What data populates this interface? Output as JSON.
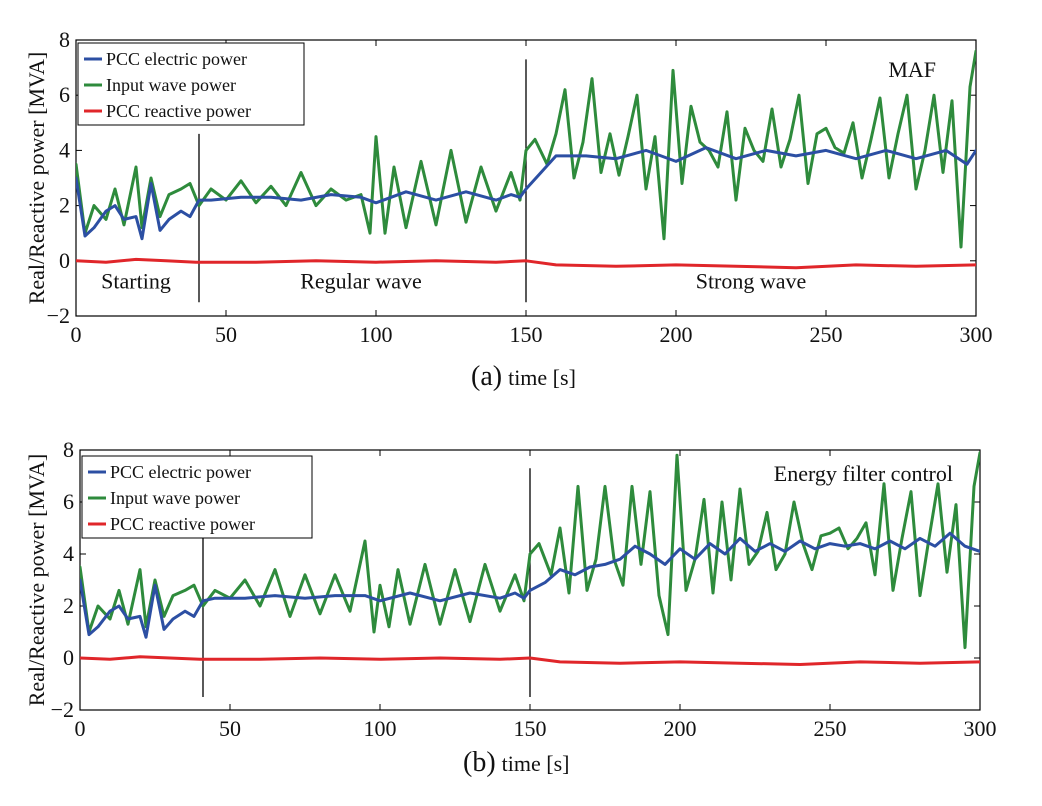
{
  "chart_data": [
    {
      "type": "line",
      "panel_letter": "(a)",
      "xlabel": "time [s]",
      "ylabel": "Real/Reactive power [MVA]",
      "xlim": [
        0,
        300
      ],
      "ylim": [
        -2,
        8
      ],
      "xticks": [
        0,
        50,
        100,
        150,
        200,
        250,
        300
      ],
      "yticks": [
        -2,
        0,
        2,
        4,
        6,
        8
      ],
      "annotation": "MAF",
      "legend_position": "top-left",
      "vlines": [
        41,
        150
      ],
      "regions": [
        {
          "label": "Starting",
          "x": 20
        },
        {
          "label": "Regular wave",
          "x": 95
        },
        {
          "label": "Strong wave",
          "x": 225
        }
      ],
      "series": [
        {
          "name": "PCC electric power",
          "color": "#2c4fa3",
          "x": [
            0,
            3,
            6,
            10,
            13,
            16,
            20,
            22,
            25,
            28,
            31,
            35,
            38,
            41,
            45,
            55,
            65,
            75,
            85,
            95,
            100,
            110,
            120,
            130,
            140,
            145,
            148,
            150,
            155,
            160,
            170,
            180,
            190,
            200,
            210,
            220,
            230,
            240,
            250,
            260,
            270,
            280,
            290,
            297,
            300
          ],
          "y": [
            3.0,
            0.9,
            1.2,
            1.8,
            2.0,
            1.5,
            1.6,
            0.8,
            2.8,
            1.1,
            1.5,
            1.8,
            1.6,
            2.2,
            2.2,
            2.3,
            2.3,
            2.2,
            2.4,
            2.3,
            2.1,
            2.5,
            2.2,
            2.5,
            2.2,
            2.4,
            2.3,
            2.6,
            3.2,
            3.8,
            3.8,
            3.7,
            4.0,
            3.6,
            4.1,
            3.7,
            4.0,
            3.8,
            4.0,
            3.7,
            4.0,
            3.7,
            4.0,
            3.5,
            4.0
          ]
        },
        {
          "name": "Input wave power",
          "color": "#2e8b3c",
          "x": [
            0,
            3,
            6,
            10,
            13,
            16,
            20,
            22,
            25,
            28,
            31,
            35,
            38,
            41,
            45,
            50,
            55,
            60,
            65,
            70,
            75,
            80,
            85,
            90,
            95,
            98,
            100,
            103,
            106,
            110,
            115,
            120,
            125,
            130,
            135,
            140,
            145,
            148,
            150,
            153,
            157,
            160,
            163,
            166,
            169,
            172,
            175,
            178,
            181,
            184,
            187,
            190,
            193,
            196,
            199,
            202,
            205,
            208,
            211,
            214,
            217,
            220,
            223,
            226,
            229,
            232,
            235,
            238,
            241,
            244,
            247,
            250,
            253,
            256,
            259,
            262,
            265,
            268,
            271,
            274,
            277,
            280,
            283,
            286,
            289,
            292,
            295,
            298,
            300
          ],
          "y": [
            3.5,
            1.0,
            2.0,
            1.5,
            2.6,
            1.3,
            3.4,
            1.2,
            3.0,
            1.6,
            2.4,
            2.6,
            2.8,
            2.0,
            2.6,
            2.2,
            2.9,
            2.1,
            2.7,
            2.0,
            3.2,
            2.0,
            2.6,
            2.2,
            2.4,
            1.0,
            4.5,
            1.0,
            3.4,
            1.2,
            3.6,
            1.3,
            4.0,
            1.4,
            3.4,
            1.8,
            3.2,
            2.2,
            4.0,
            4.4,
            3.5,
            4.6,
            6.2,
            3.0,
            4.3,
            6.6,
            3.2,
            4.6,
            3.1,
            4.5,
            6.0,
            2.6,
            4.5,
            0.8,
            6.9,
            2.8,
            5.6,
            4.3,
            4.0,
            3.4,
            5.4,
            2.2,
            4.8,
            4.0,
            3.6,
            5.5,
            3.4,
            4.4,
            6.0,
            2.8,
            4.6,
            4.8,
            4.1,
            3.9,
            5.0,
            3.0,
            4.4,
            5.9,
            3.0,
            4.6,
            6.0,
            2.6,
            4.0,
            6.0,
            3.2,
            5.8,
            0.5,
            6.3,
            7.6
          ]
        },
        {
          "name": "PCC reactive power",
          "color": "#e0262a",
          "x": [
            0,
            10,
            20,
            30,
            40,
            60,
            80,
            100,
            120,
            140,
            150,
            160,
            180,
            200,
            220,
            240,
            260,
            280,
            300
          ],
          "y": [
            0.0,
            -0.05,
            0.05,
            0.0,
            -0.05,
            -0.05,
            0.0,
            -0.05,
            0.0,
            -0.05,
            0.0,
            -0.15,
            -0.2,
            -0.15,
            -0.2,
            -0.25,
            -0.15,
            -0.2,
            -0.15
          ]
        }
      ]
    },
    {
      "type": "line",
      "panel_letter": "(b)",
      "xlabel": "time [s]",
      "ylabel": "Real/Reactive power [MVA]",
      "xlim": [
        0,
        300
      ],
      "ylim": [
        -2,
        8
      ],
      "xticks": [
        0,
        50,
        100,
        150,
        200,
        250,
        300
      ],
      "yticks": [
        -2,
        0,
        2,
        4,
        6,
        8
      ],
      "annotation": "Energy filter control",
      "legend_position": "top-left",
      "vlines": [
        41,
        150
      ],
      "regions": [],
      "series": [
        {
          "name": "PCC electric power",
          "color": "#2c4fa3",
          "x": [
            0,
            3,
            6,
            10,
            13,
            16,
            20,
            22,
            25,
            28,
            31,
            35,
            38,
            41,
            45,
            55,
            65,
            75,
            85,
            95,
            100,
            110,
            120,
            130,
            140,
            145,
            148,
            150,
            155,
            160,
            165,
            170,
            175,
            180,
            185,
            190,
            195,
            200,
            205,
            210,
            215,
            220,
            225,
            230,
            235,
            240,
            245,
            250,
            255,
            260,
            265,
            270,
            275,
            280,
            285,
            290,
            295,
            300
          ],
          "y": [
            3.0,
            0.9,
            1.2,
            1.8,
            2.0,
            1.5,
            1.6,
            0.8,
            2.8,
            1.1,
            1.5,
            1.8,
            1.6,
            2.2,
            2.3,
            2.3,
            2.4,
            2.3,
            2.4,
            2.4,
            2.2,
            2.5,
            2.2,
            2.5,
            2.3,
            2.5,
            2.3,
            2.6,
            2.9,
            3.4,
            3.2,
            3.5,
            3.6,
            3.8,
            4.3,
            4.0,
            3.6,
            4.2,
            3.8,
            4.4,
            4.0,
            4.6,
            4.1,
            4.4,
            4.1,
            4.5,
            4.2,
            4.4,
            4.3,
            4.4,
            4.2,
            4.5,
            4.2,
            4.6,
            4.3,
            4.8,
            4.3,
            4.1
          ]
        },
        {
          "name": "Input wave power",
          "color": "#2e8b3c",
          "x": [
            0,
            3,
            6,
            10,
            13,
            16,
            20,
            22,
            25,
            28,
            31,
            35,
            38,
            41,
            45,
            50,
            55,
            60,
            65,
            70,
            75,
            80,
            85,
            90,
            95,
            98,
            100,
            103,
            106,
            110,
            115,
            120,
            125,
            130,
            135,
            140,
            145,
            148,
            150,
            153,
            157,
            160,
            163,
            166,
            169,
            172,
            175,
            178,
            181,
            184,
            187,
            190,
            193,
            196,
            199,
            202,
            205,
            208,
            211,
            214,
            217,
            220,
            223,
            226,
            229,
            232,
            235,
            238,
            241,
            244,
            247,
            250,
            253,
            256,
            259,
            262,
            265,
            268,
            271,
            274,
            277,
            280,
            283,
            286,
            289,
            292,
            295,
            298,
            300
          ],
          "y": [
            3.5,
            1.0,
            2.0,
            1.5,
            2.6,
            1.3,
            3.4,
            1.2,
            3.0,
            1.6,
            2.4,
            2.6,
            2.8,
            2.0,
            2.6,
            2.3,
            3.0,
            2.0,
            3.4,
            1.6,
            3.2,
            1.7,
            3.2,
            1.8,
            4.5,
            1.0,
            2.8,
            1.2,
            3.4,
            1.3,
            3.6,
            1.3,
            3.4,
            1.4,
            3.6,
            1.8,
            3.2,
            2.2,
            4.0,
            4.4,
            3.2,
            5.0,
            2.5,
            6.6,
            2.6,
            3.8,
            6.6,
            3.8,
            2.8,
            6.6,
            3.6,
            6.4,
            2.4,
            0.9,
            7.8,
            2.6,
            3.8,
            6.1,
            2.5,
            6.0,
            3.0,
            6.5,
            3.6,
            4.1,
            5.6,
            3.4,
            4.0,
            6.0,
            4.4,
            3.4,
            4.7,
            4.8,
            5.0,
            4.2,
            4.6,
            5.2,
            3.2,
            6.7,
            2.6,
            4.6,
            6.4,
            2.4,
            4.6,
            6.7,
            3.3,
            5.9,
            0.4,
            6.6,
            7.9
          ]
        },
        {
          "name": "PCC reactive power",
          "color": "#e0262a",
          "x": [
            0,
            10,
            20,
            30,
            40,
            60,
            80,
            100,
            120,
            140,
            150,
            160,
            180,
            200,
            220,
            240,
            260,
            280,
            300
          ],
          "y": [
            0.0,
            -0.05,
            0.05,
            0.0,
            -0.05,
            -0.05,
            0.0,
            -0.05,
            0.0,
            -0.05,
            0.0,
            -0.15,
            -0.2,
            -0.15,
            -0.2,
            -0.25,
            -0.15,
            -0.2,
            -0.15
          ]
        }
      ]
    }
  ]
}
